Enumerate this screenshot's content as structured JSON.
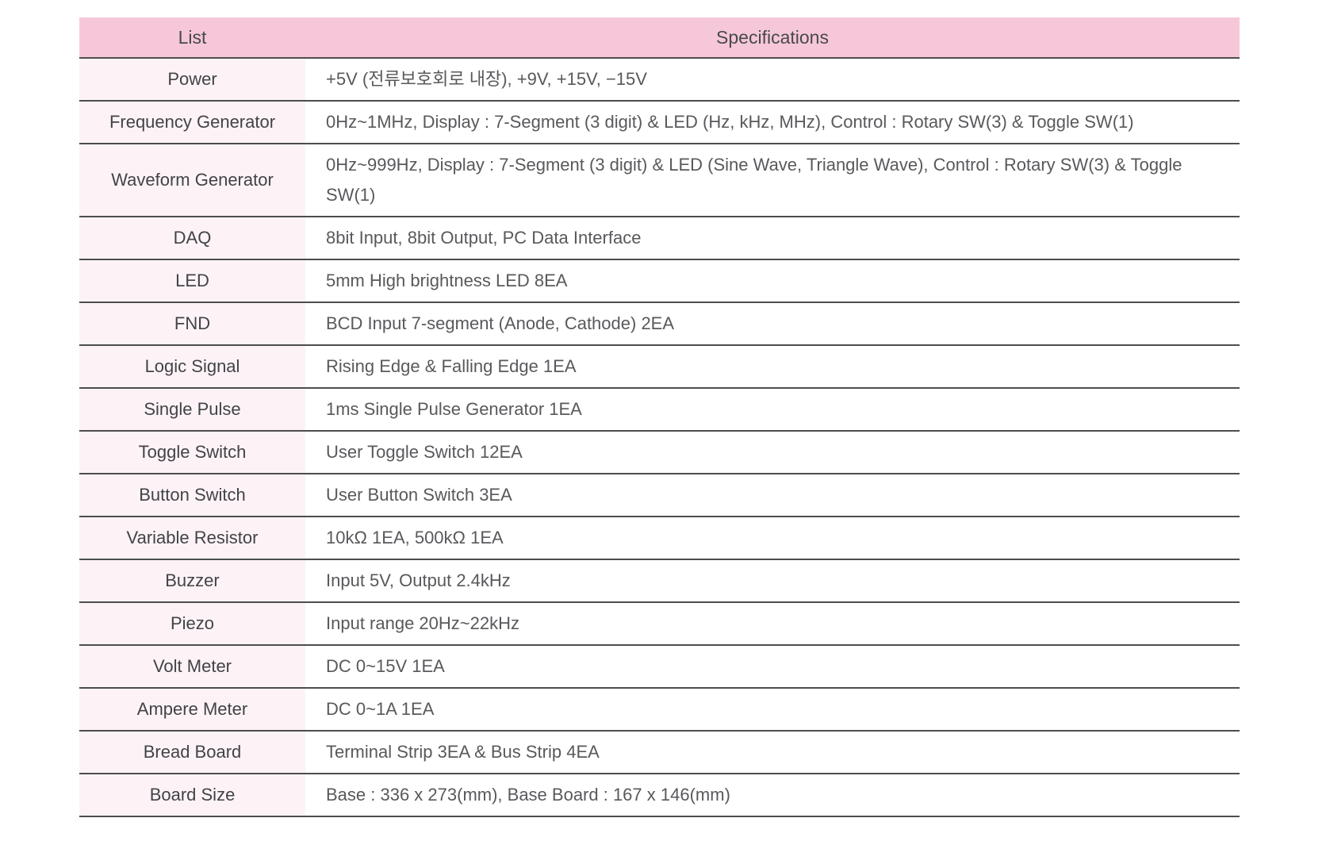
{
  "table": {
    "headers": {
      "list": "List",
      "specifications": "Specifications"
    },
    "rows": [
      {
        "label": "Power",
        "spec": "+5V (전류보호회로 내장), +9V, +15V, −15V"
      },
      {
        "label": "Frequency Generator",
        "spec": "0Hz~1MHz, Display : 7-Segment (3 digit) & LED (Hz, kHz, MHz), Control : Rotary SW(3) & Toggle SW(1)"
      },
      {
        "label": "Waveform Generator",
        "spec": "0Hz~999Hz, Display : 7-Segment (3 digit) & LED (Sine Wave, Triangle Wave), Control : Rotary SW(3) & Toggle SW(1)"
      },
      {
        "label": "DAQ",
        "spec": "8bit Input, 8bit Output, PC Data Interface"
      },
      {
        "label": "LED",
        "spec": "5mm High brightness LED 8EA"
      },
      {
        "label": "FND",
        "spec": "BCD Input 7-segment (Anode, Cathode) 2EA"
      },
      {
        "label": "Logic Signal",
        "spec": "Rising Edge & Falling Edge 1EA"
      },
      {
        "label": "Single Pulse",
        "spec": "1ms Single Pulse Generator 1EA"
      },
      {
        "label": "Toggle Switch",
        "spec": "User Toggle Switch 12EA"
      },
      {
        "label": "Button Switch",
        "spec": "User Button Switch 3EA"
      },
      {
        "label": "Variable Resistor",
        "spec": "10kΩ 1EA, 500kΩ 1EA"
      },
      {
        "label": "Buzzer",
        "spec": "Input 5V, Output 2.4kHz"
      },
      {
        "label": "Piezo",
        "spec": "Input range 20Hz~22kHz"
      },
      {
        "label": "Volt Meter",
        "spec": "DC 0~15V 1EA"
      },
      {
        "label": "Ampere Meter",
        "spec": "DC 0~1A 1EA"
      },
      {
        "label": "Bread Board",
        "spec": "Terminal Strip 3EA & Bus Strip 4EA"
      },
      {
        "label": "Board Size",
        "spec": "Base : 336 x 273(mm), Base Board : 167 x 146(mm)"
      }
    ],
    "colors": {
      "header_bg": "#f6c7d8",
      "label_bg": "#fdf3f7",
      "border": "#4d4d4f",
      "header_text": "#48494b",
      "label_text": "#424347",
      "spec_text": "#58595c"
    }
  }
}
